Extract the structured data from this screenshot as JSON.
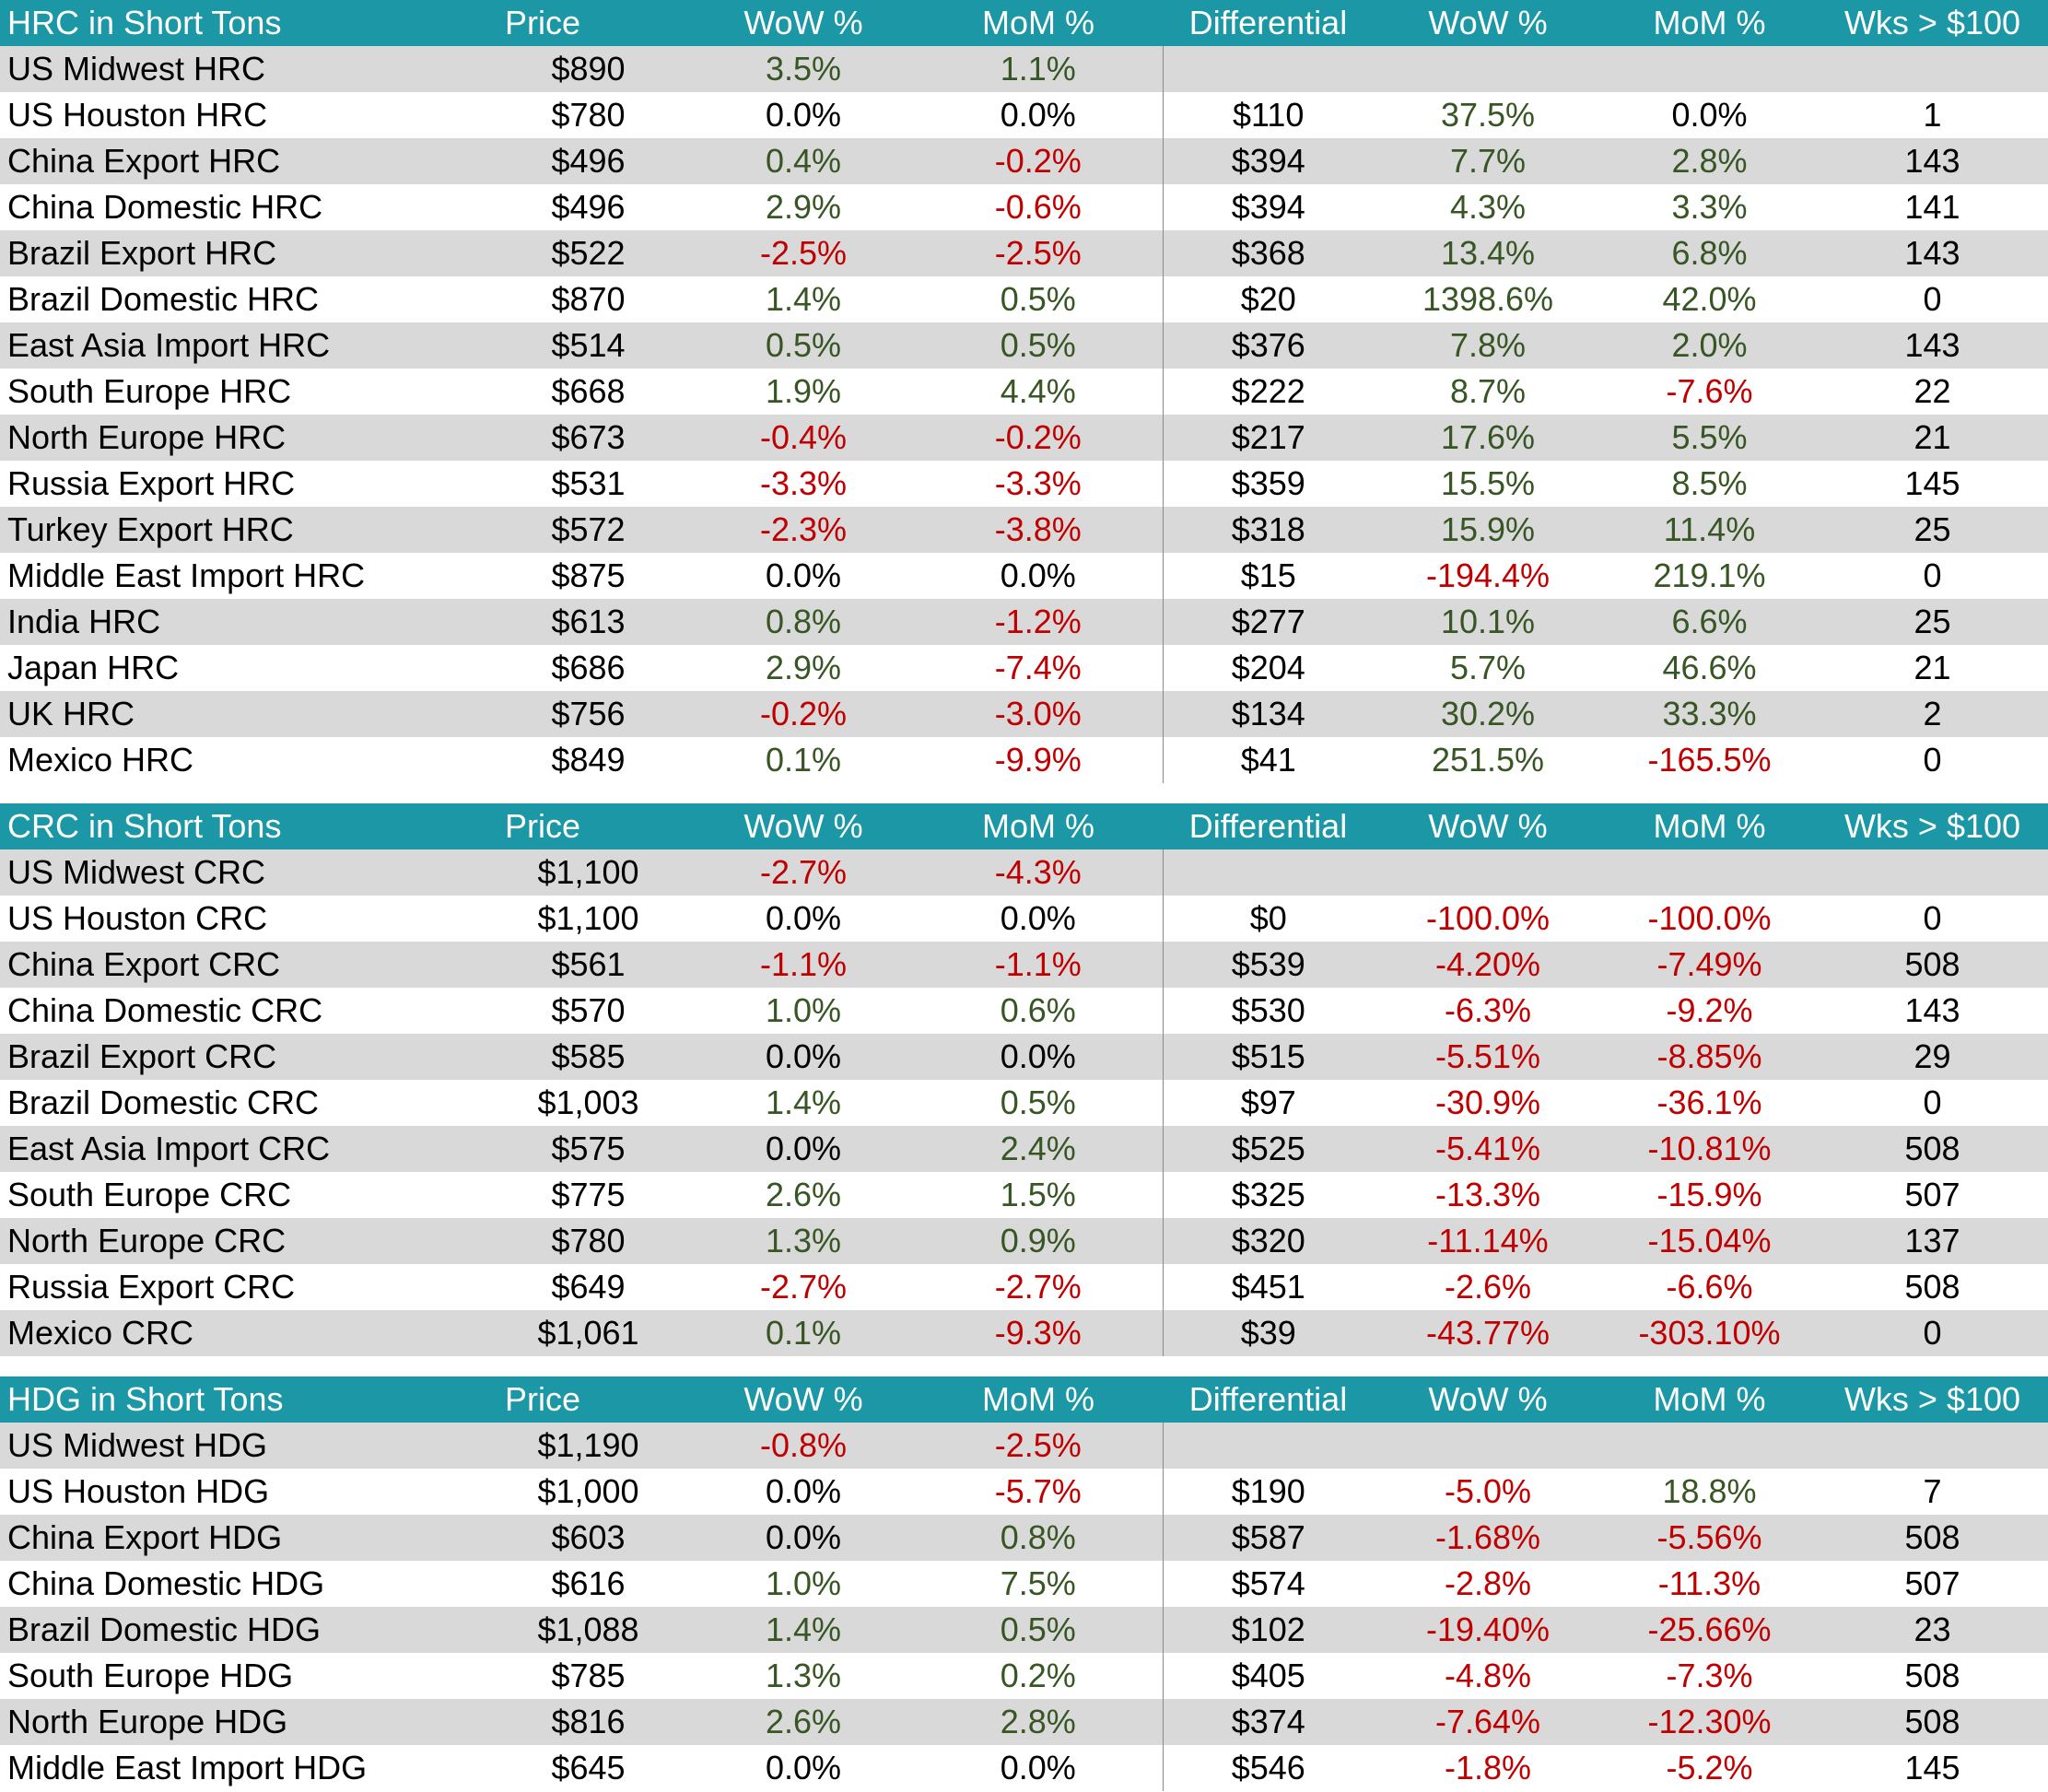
{
  "sections": [
    {
      "headers": [
        "HRC in Short Tons",
        "Price",
        "WoW %",
        "MoM %",
        "Differential",
        "WoW %",
        "MoM %",
        "Wks > $100"
      ],
      "rows": [
        {
          "name": "US Midwest HRC",
          "price": "$890",
          "wow": "3.5%",
          "mom": "1.1%",
          "diff": "",
          "dwow": "",
          "dmom": "",
          "wks": ""
        },
        {
          "name": "US Houston HRC",
          "price": "$780",
          "wow": "0.0%",
          "mom": "0.0%",
          "diff": "$110",
          "dwow": "37.5%",
          "dmom": "0.0%",
          "wks": "1"
        },
        {
          "name": "China Export HRC",
          "price": "$496",
          "wow": "0.4%",
          "mom": "-0.2%",
          "diff": "$394",
          "dwow": "7.7%",
          "dmom": "2.8%",
          "wks": "143"
        },
        {
          "name": "China Domestic HRC",
          "price": "$496",
          "wow": "2.9%",
          "mom": "-0.6%",
          "diff": "$394",
          "dwow": "4.3%",
          "dmom": "3.3%",
          "wks": "141"
        },
        {
          "name": "Brazil Export HRC",
          "price": "$522",
          "wow": "-2.5%",
          "mom": "-2.5%",
          "diff": "$368",
          "dwow": "13.4%",
          "dmom": "6.8%",
          "wks": "143"
        },
        {
          "name": "Brazil Domestic HRC",
          "price": "$870",
          "wow": "1.4%",
          "mom": "0.5%",
          "diff": "$20",
          "dwow": "1398.6%",
          "dmom": "42.0%",
          "wks": "0"
        },
        {
          "name": "East Asia Import HRC",
          "price": "$514",
          "wow": "0.5%",
          "mom": "0.5%",
          "diff": "$376",
          "dwow": "7.8%",
          "dmom": "2.0%",
          "wks": "143"
        },
        {
          "name": "South Europe HRC",
          "price": "$668",
          "wow": "1.9%",
          "mom": "4.4%",
          "diff": "$222",
          "dwow": "8.7%",
          "dmom": "-7.6%",
          "wks": "22"
        },
        {
          "name": "North Europe HRC",
          "price": "$673",
          "wow": "-0.4%",
          "mom": "-0.2%",
          "diff": "$217",
          "dwow": "17.6%",
          "dmom": "5.5%",
          "wks": "21"
        },
        {
          "name": "Russia Export HRC",
          "price": "$531",
          "wow": "-3.3%",
          "mom": "-3.3%",
          "diff": "$359",
          "dwow": "15.5%",
          "dmom": "8.5%",
          "wks": "145"
        },
        {
          "name": "Turkey Export HRC",
          "price": "$572",
          "wow": "-2.3%",
          "mom": "-3.8%",
          "diff": "$318",
          "dwow": "15.9%",
          "dmom": "11.4%",
          "wks": "25"
        },
        {
          "name": "Middle East Import HRC",
          "price": "$875",
          "wow": "0.0%",
          "mom": "0.0%",
          "diff": "$15",
          "dwow": "-194.4%",
          "dmom": "219.1%",
          "wks": "0"
        },
        {
          "name": "India HRC",
          "price": "$613",
          "wow": "0.8%",
          "mom": "-1.2%",
          "diff": "$277",
          "dwow": "10.1%",
          "dmom": "6.6%",
          "wks": "25"
        },
        {
          "name": "Japan HRC",
          "price": "$686",
          "wow": "2.9%",
          "mom": "-7.4%",
          "diff": "$204",
          "dwow": "5.7%",
          "dmom": "46.6%",
          "wks": "21"
        },
        {
          "name": "UK HRC",
          "price": "$756",
          "wow": "-0.2%",
          "mom": "-3.0%",
          "diff": "$134",
          "dwow": "30.2%",
          "dmom": "33.3%",
          "wks": "2"
        },
        {
          "name": "Mexico HRC",
          "price": "$849",
          "wow": "0.1%",
          "mom": "-9.9%",
          "diff": "$41",
          "dwow": "251.5%",
          "dmom": "-165.5%",
          "wks": "0"
        }
      ]
    },
    {
      "headers": [
        "CRC in Short Tons",
        "Price",
        "WoW %",
        "MoM %",
        "Differential",
        "WoW %",
        "MoM %",
        "Wks > $100"
      ],
      "rows": [
        {
          "name": "US Midwest CRC",
          "price": "$1,100",
          "wow": "-2.7%",
          "mom": "-4.3%",
          "diff": "",
          "dwow": "",
          "dmom": "",
          "wks": ""
        },
        {
          "name": "US Houston CRC",
          "price": "$1,100",
          "wow": "0.0%",
          "mom": "0.0%",
          "diff": "$0",
          "dwow": "-100.0%",
          "dmom": "-100.0%",
          "wks": "0"
        },
        {
          "name": "China Export CRC",
          "price": "$561",
          "wow": "-1.1%",
          "mom": "-1.1%",
          "diff": "$539",
          "dwow": "-4.20%",
          "dmom": "-7.49%",
          "wks": "508"
        },
        {
          "name": "China Domestic CRC",
          "price": "$570",
          "wow": "1.0%",
          "mom": "0.6%",
          "diff": "$530",
          "dwow": "-6.3%",
          "dmom": "-9.2%",
          "wks": "143"
        },
        {
          "name": "Brazil Export CRC",
          "price": "$585",
          "wow": "0.0%",
          "mom": "0.0%",
          "diff": "$515",
          "dwow": "-5.51%",
          "dmom": "-8.85%",
          "wks": "29"
        },
        {
          "name": "Brazil Domestic CRC",
          "price": "$1,003",
          "wow": "1.4%",
          "mom": "0.5%",
          "diff": "$97",
          "dwow": "-30.9%",
          "dmom": "-36.1%",
          "wks": "0"
        },
        {
          "name": "East Asia Import CRC",
          "price": "$575",
          "wow": "0.0%",
          "mom": "2.4%",
          "diff": "$525",
          "dwow": "-5.41%",
          "dmom": "-10.81%",
          "wks": "508"
        },
        {
          "name": "South Europe CRC",
          "price": "$775",
          "wow": "2.6%",
          "mom": "1.5%",
          "diff": "$325",
          "dwow": "-13.3%",
          "dmom": "-15.9%",
          "wks": "507"
        },
        {
          "name": "North Europe CRC",
          "price": "$780",
          "wow": "1.3%",
          "mom": "0.9%",
          "diff": "$320",
          "dwow": "-11.14%",
          "dmom": "-15.04%",
          "wks": "137"
        },
        {
          "name": "Russia Export CRC",
          "price": "$649",
          "wow": "-2.7%",
          "mom": "-2.7%",
          "diff": "$451",
          "dwow": "-2.6%",
          "dmom": "-6.6%",
          "wks": "508"
        },
        {
          "name": "Mexico CRC",
          "price": "$1,061",
          "wow": "0.1%",
          "mom": "-9.3%",
          "diff": "$39",
          "dwow": "-43.77%",
          "dmom": "-303.10%",
          "wks": "0"
        }
      ]
    },
    {
      "headers": [
        "HDG in Short Tons",
        "Price",
        "WoW %",
        "MoM %",
        "Differential",
        "WoW %",
        "MoM %",
        "Wks > $100"
      ],
      "rows": [
        {
          "name": "US Midwest HDG",
          "price": "$1,190",
          "wow": "-0.8%",
          "mom": "-2.5%",
          "diff": "",
          "dwow": "",
          "dmom": "",
          "wks": ""
        },
        {
          "name": "US Houston HDG",
          "price": "$1,000",
          "wow": "0.0%",
          "mom": "-5.7%",
          "diff": "$190",
          "dwow": "-5.0%",
          "dmom": "18.8%",
          "wks": "7"
        },
        {
          "name": "China Export HDG",
          "price": "$603",
          "wow": "0.0%",
          "mom": "0.8%",
          "diff": "$587",
          "dwow": "-1.68%",
          "dmom": "-5.56%",
          "wks": "508"
        },
        {
          "name": "China Domestic HDG",
          "price": "$616",
          "wow": "1.0%",
          "mom": "7.5%",
          "diff": "$574",
          "dwow": "-2.8%",
          "dmom": "-11.3%",
          "wks": "507"
        },
        {
          "name": "Brazil Domestic HDG",
          "price": "$1,088",
          "wow": "1.4%",
          "mom": "0.5%",
          "diff": "$102",
          "dwow": "-19.40%",
          "dmom": "-25.66%",
          "wks": "23"
        },
        {
          "name": "South Europe HDG",
          "price": "$785",
          "wow": "1.3%",
          "mom": "0.2%",
          "diff": "$405",
          "dwow": "-4.8%",
          "dmom": "-7.3%",
          "wks": "508"
        },
        {
          "name": "North Europe HDG",
          "price": "$816",
          "wow": "2.6%",
          "mom": "2.8%",
          "diff": "$374",
          "dwow": "-7.64%",
          "dmom": "-12.30%",
          "wks": "508"
        },
        {
          "name": "Middle East Import HDG",
          "price": "$645",
          "wow": "0.0%",
          "mom": "0.0%",
          "diff": "$546",
          "dwow": "-1.8%",
          "dmom": "-5.2%",
          "wks": "145"
        }
      ]
    }
  ],
  "colors": {
    "header_bg": "#1b97a6",
    "header_text": "#ffffff",
    "band_gray": "#d9d9d9",
    "positive": "#375623",
    "negative": "#c00000"
  }
}
